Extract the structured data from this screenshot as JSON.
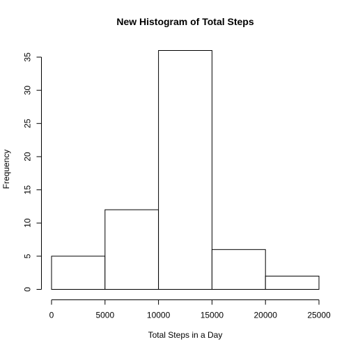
{
  "chart_data": {
    "type": "bar",
    "title": "New Histogram of Total Steps",
    "xlabel": "Total Steps in a Day",
    "ylabel": "Frequency",
    "bins": [
      {
        "start": 0,
        "end": 5000,
        "count": 5
      },
      {
        "start": 5000,
        "end": 10000,
        "count": 12
      },
      {
        "start": 10000,
        "end": 15000,
        "count": 36
      },
      {
        "start": 15000,
        "end": 20000,
        "count": 6
      },
      {
        "start": 20000,
        "end": 25000,
        "count": 2
      }
    ],
    "xlim": [
      0,
      25000
    ],
    "ylim": [
      0,
      36
    ],
    "x_ticks": [
      0,
      5000,
      10000,
      15000,
      20000,
      25000
    ],
    "y_ticks": [
      0,
      5,
      10,
      15,
      20,
      25,
      30,
      35
    ],
    "grid": false,
    "legend": "none",
    "bar_fill": "#ffffff",
    "bar_stroke": "#000000"
  }
}
